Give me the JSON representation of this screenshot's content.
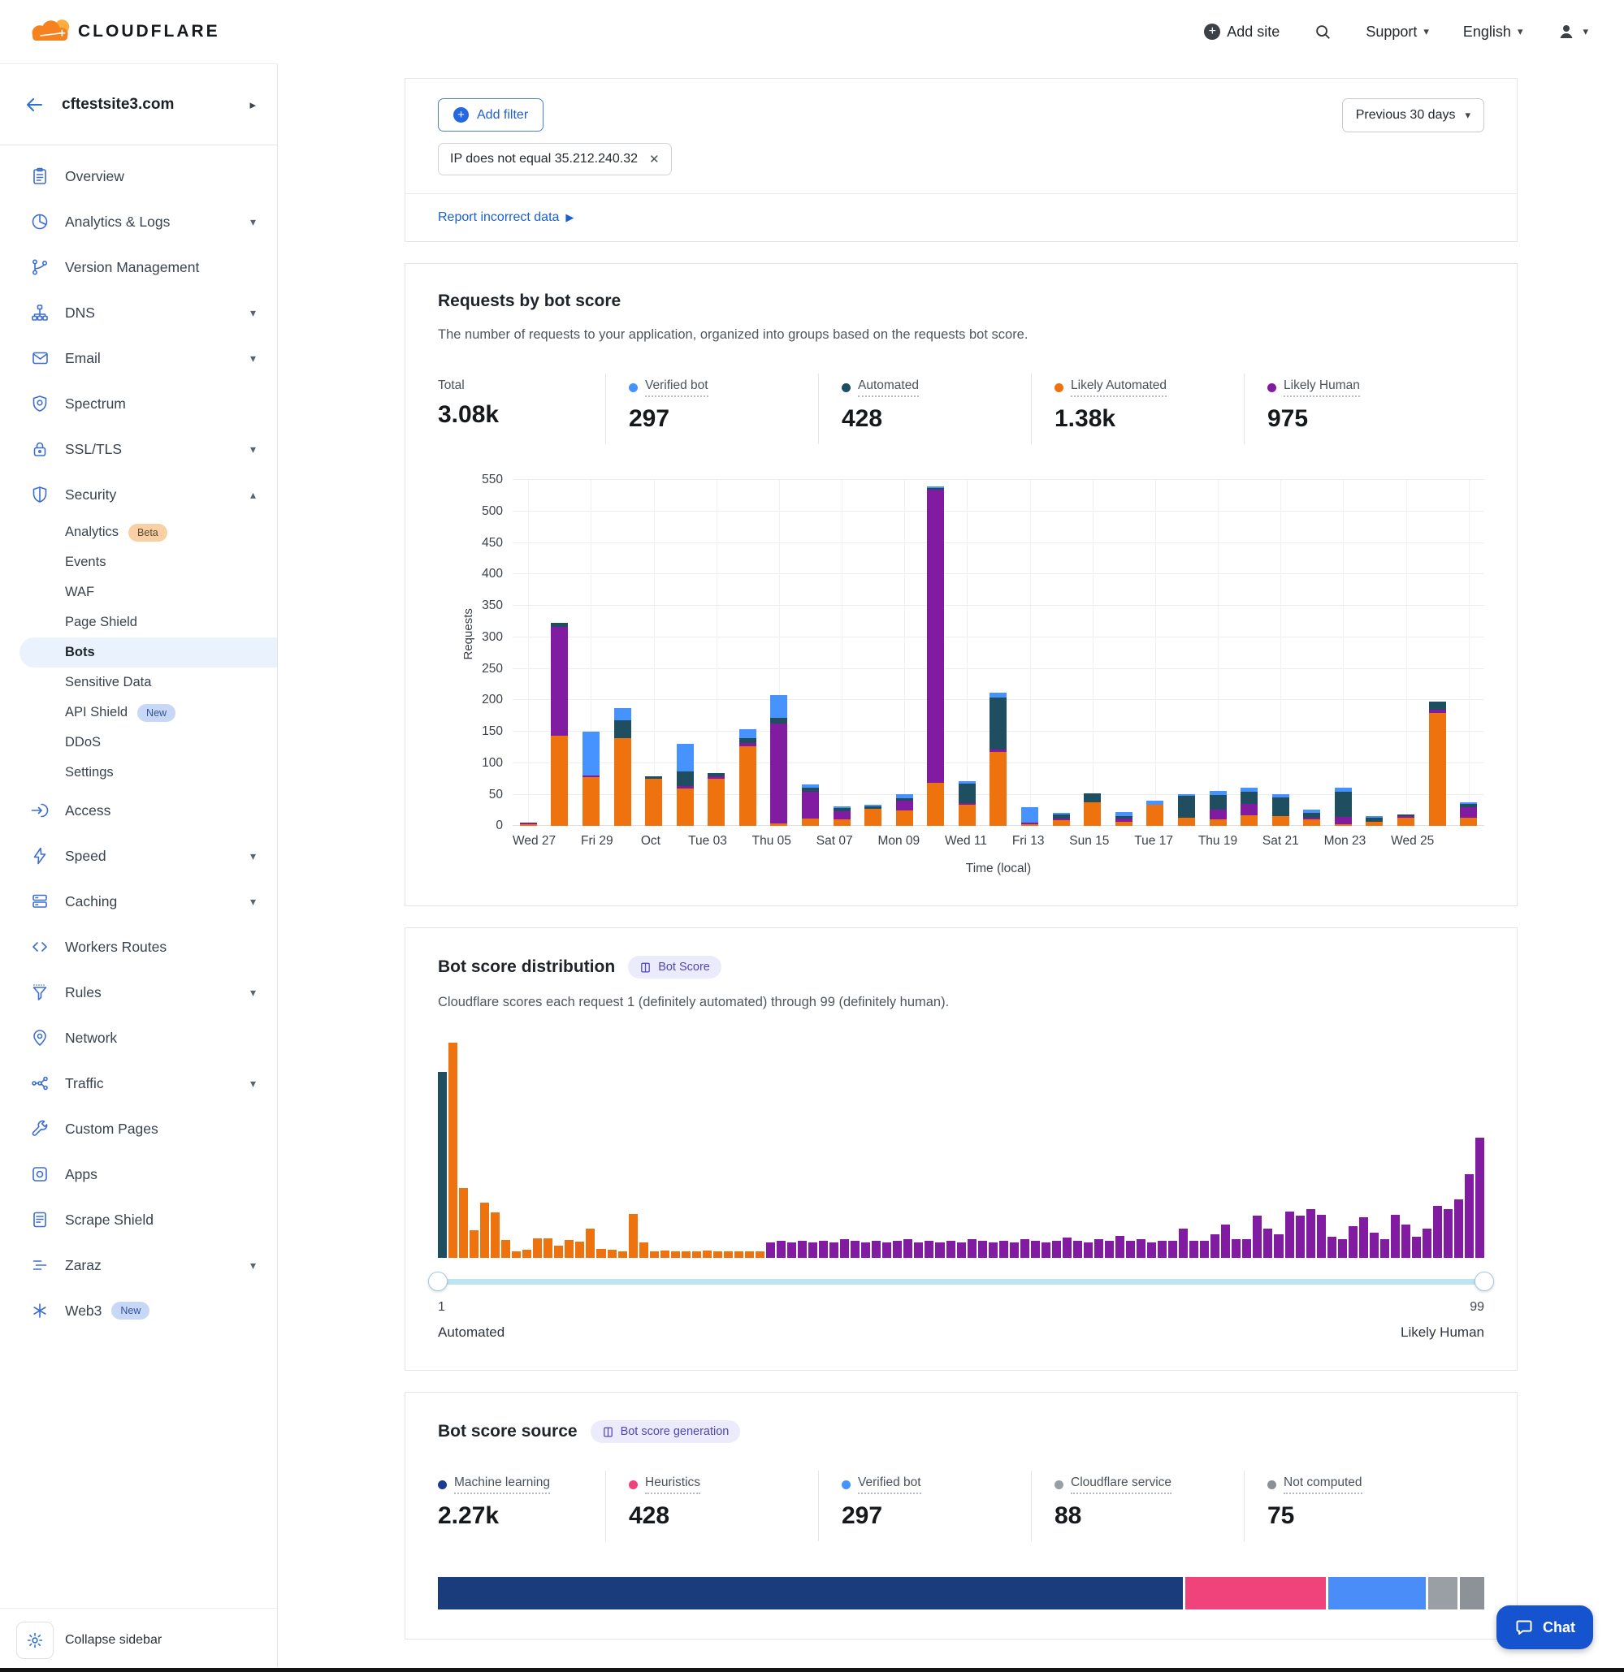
{
  "header": {
    "brand": "CLOUDFLARE",
    "add_site": "Add site",
    "support": "Support",
    "language": "English"
  },
  "sidebar": {
    "site": "cftestsite3.com",
    "collapse_label": "Collapse sidebar",
    "items": [
      {
        "label": "Overview",
        "icon": "clipboard-icon"
      },
      {
        "label": "Analytics & Logs",
        "icon": "pie-chart-icon",
        "caret": "down"
      },
      {
        "label": "Version Management",
        "icon": "git-branch-icon"
      },
      {
        "label": "DNS",
        "icon": "sitemap-icon",
        "caret": "down"
      },
      {
        "label": "Email",
        "icon": "envelope-icon",
        "caret": "down"
      },
      {
        "label": "Spectrum",
        "icon": "shield-star-icon"
      },
      {
        "label": "SSL/TLS",
        "icon": "lock-icon",
        "caret": "down"
      },
      {
        "label": "Security",
        "icon": "shield-icon",
        "caret": "up",
        "sub": [
          {
            "label": "Analytics",
            "badge": {
              "text": "Beta",
              "type": "beta"
            }
          },
          {
            "label": "Events"
          },
          {
            "label": "WAF"
          },
          {
            "label": "Page Shield"
          },
          {
            "label": "Bots",
            "active": true
          },
          {
            "label": "Sensitive Data"
          },
          {
            "label": "API Shield",
            "badge": {
              "text": "New",
              "type": "new"
            }
          },
          {
            "label": "DDoS"
          },
          {
            "label": "Settings"
          }
        ]
      },
      {
        "label": "Access",
        "icon": "login-arrow-icon"
      },
      {
        "label": "Speed",
        "icon": "bolt-icon",
        "caret": "down"
      },
      {
        "label": "Caching",
        "icon": "server-stack-icon",
        "caret": "down"
      },
      {
        "label": "Workers Routes",
        "icon": "code-icon"
      },
      {
        "label": "Rules",
        "icon": "funnel-icon",
        "caret": "down"
      },
      {
        "label": "Network",
        "icon": "map-pin-icon"
      },
      {
        "label": "Traffic",
        "icon": "share-nodes-icon",
        "caret": "down"
      },
      {
        "label": "Custom Pages",
        "icon": "wrench-icon"
      },
      {
        "label": "Apps",
        "icon": "app-window-icon"
      },
      {
        "label": "Scrape Shield",
        "icon": "document-icon"
      },
      {
        "label": "Zaraz",
        "icon": "zaraz-lines-icon",
        "caret": "down"
      },
      {
        "label": "Web3",
        "icon": "snowflake-icon",
        "badge": {
          "text": "New",
          "type": "new"
        }
      }
    ]
  },
  "filter": {
    "add_filter_label": "Add filter",
    "pill_text": "IP does not equal 35.212.240.32",
    "range_label": "Previous 30 days",
    "report_label": "Report incorrect data"
  },
  "requests": {
    "title": "Requests by bot score",
    "description": "The number of requests to your application, organized into groups based on the requests bot score.",
    "stats": [
      {
        "label": "Total",
        "value": "3.08k",
        "color": null
      },
      {
        "label": "Verified bot",
        "value": "297",
        "color": "#4693ff"
      },
      {
        "label": "Automated",
        "value": "428",
        "color": "#1e4e60"
      },
      {
        "label": "Likely Automated",
        "value": "1.38k",
        "color": "#ee720d"
      },
      {
        "label": "Likely Human",
        "value": "975",
        "color": "#811ba2"
      }
    ]
  },
  "distribution": {
    "title": "Bot score distribution",
    "badge": "Bot Score",
    "description": "Cloudflare scores each request 1 (definitely automated) through 99 (definitely human).",
    "min_label": "1",
    "max_label": "99",
    "left_caption": "Automated",
    "right_caption": "Likely Human"
  },
  "source": {
    "title": "Bot score source",
    "badge": "Bot score generation",
    "stats": [
      {
        "label": "Machine learning",
        "value": "2.27k",
        "color": "#1b3d8f"
      },
      {
        "label": "Heuristics",
        "value": "428",
        "color": "#f0437c"
      },
      {
        "label": "Verified bot",
        "value": "297",
        "color": "#4693ff"
      },
      {
        "label": "Cloudflare service",
        "value": "88",
        "color": "#969fa8"
      },
      {
        "label": "Not computed",
        "value": "75",
        "color": "#8a9096"
      }
    ]
  },
  "chat": {
    "label": "Chat"
  },
  "chart_data": [
    {
      "type": "bar",
      "stacked": true,
      "title": "Requests by bot score",
      "xlabel": "Time (local)",
      "ylabel": "Requests",
      "ylim": [
        0,
        550
      ],
      "ytick_step": 50,
      "grid": true,
      "tick_every": 2,
      "tick_labels": [
        "Wed 27",
        "Fri 29",
        "Oct",
        "Tue 03",
        "Thu 05",
        "Sat 07",
        "Mon 09",
        "Wed 11",
        "Fri 13",
        "Sun 15",
        "Tue 17",
        "Thu 19",
        "Sat 21",
        "Mon 23",
        "Wed 25"
      ],
      "series": [
        {
          "name": "Likely Automated",
          "color": "#ee720d",
          "values": [
            3,
            143,
            78,
            140,
            75,
            60,
            75,
            127,
            4,
            11,
            10,
            27,
            25,
            69,
            33,
            117,
            2,
            9,
            38,
            6,
            34,
            13,
            10,
            17,
            15,
            10,
            3,
            7,
            13,
            180,
            13
          ]
        },
        {
          "name": "Likely Human",
          "color": "#811ba2",
          "values": [
            1,
            173,
            3,
            0,
            0,
            4,
            4,
            5,
            159,
            42,
            13,
            0,
            16,
            466,
            3,
            4,
            3,
            2,
            0,
            5,
            0,
            0,
            15,
            18,
            0,
            2,
            12,
            0,
            2,
            5,
            17
          ]
        },
        {
          "name": "Automated",
          "color": "#1e4e60",
          "values": [
            0,
            6,
            0,
            28,
            4,
            23,
            5,
            8,
            9,
            7,
            5,
            4,
            4,
            3,
            31,
            82,
            0,
            6,
            14,
            4,
            0,
            35,
            23,
            20,
            30,
            8,
            40,
            6,
            3,
            13,
            5
          ]
        },
        {
          "name": "Verified bot",
          "color": "#4693ff",
          "values": [
            0,
            0,
            70,
            19,
            0,
            44,
            0,
            14,
            36,
            5,
            3,
            2,
            7,
            2,
            4,
            8,
            24,
            2,
            0,
            6,
            6,
            2,
            7,
            7,
            5,
            5,
            7,
            1,
            0,
            0,
            3
          ]
        }
      ]
    },
    {
      "type": "bar",
      "title": "Bot score distribution",
      "x_range": [
        1,
        99
      ],
      "segments": [
        {
          "start": 1,
          "end": 1,
          "color": "#1e4e60",
          "name": "Automated"
        },
        {
          "start": 2,
          "end": 31,
          "color": "#ee720d",
          "name": "Likely Automated"
        },
        {
          "start": 32,
          "end": 99,
          "color": "#811ba2",
          "name": "Likely Human"
        }
      ],
      "values": [
        545,
        630,
        205,
        80,
        162,
        132,
        52,
        20,
        24,
        56,
        58,
        36,
        52,
        48,
        86,
        26,
        24,
        20,
        128,
        46,
        20,
        22,
        20,
        18,
        20,
        22,
        20,
        18,
        20,
        20,
        18,
        44,
        49,
        44,
        49,
        44,
        49,
        44,
        54,
        49,
        44,
        49,
        44,
        49,
        54,
        44,
        49,
        44,
        49,
        44,
        54,
        49,
        44,
        49,
        44,
        54,
        49,
        44,
        49,
        59,
        49,
        44,
        54,
        49,
        64,
        49,
        54,
        44,
        49,
        50,
        85,
        49,
        49,
        69,
        98,
        54,
        54,
        123,
        86,
        69,
        135,
        123,
        142,
        127,
        61,
        54,
        93,
        118,
        74,
        54,
        127,
        98,
        61,
        86,
        152,
        142,
        172,
        245,
        353
      ]
    },
    {
      "type": "bar",
      "title": "Bot score source share",
      "orientation": "horizontal-stacked",
      "categories": [
        "Machine learning",
        "Heuristics",
        "Verified bot",
        "Cloudflare service",
        "Not computed"
      ],
      "values": [
        2270,
        428,
        297,
        88,
        75
      ],
      "colors": [
        "#1a3c7d",
        "#f0437c",
        "#4a8df8",
        "#9a9fa5",
        "#8d9298"
      ]
    }
  ]
}
